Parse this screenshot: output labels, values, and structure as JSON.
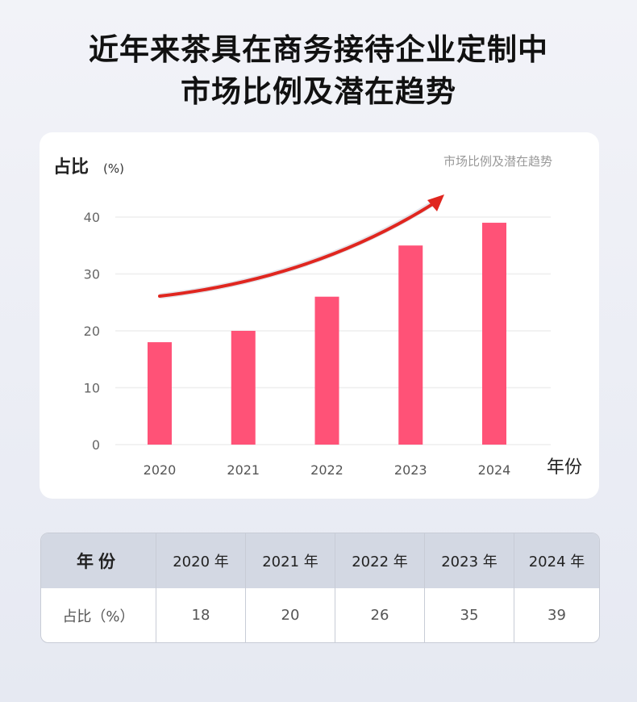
{
  "title_line1": "近年来茶具在商务接待企业定制中",
  "title_line2": "市场比例及潜在趋势",
  "chart_data": {
    "type": "bar",
    "title": "市场比例及潜在趋势",
    "ylabel": "占比",
    "yunit": "(%)",
    "xlabel": "年份",
    "categories": [
      "2020",
      "2021",
      "2022",
      "2023",
      "2024"
    ],
    "values": [
      18,
      20,
      26,
      35,
      39
    ],
    "ylim": [
      0,
      40
    ],
    "yticks": [
      "0",
      "10",
      "20",
      "30",
      "40"
    ],
    "grid": true,
    "bar_color": "#ff5277",
    "trend_arrow_color": "#e0261f"
  },
  "table": {
    "header": [
      "年份",
      "2020 年",
      "2021 年",
      "2022 年",
      "2023 年",
      "2024 年"
    ],
    "row": [
      "占比（%）",
      "18",
      "20",
      "26",
      "35",
      "39"
    ]
  }
}
